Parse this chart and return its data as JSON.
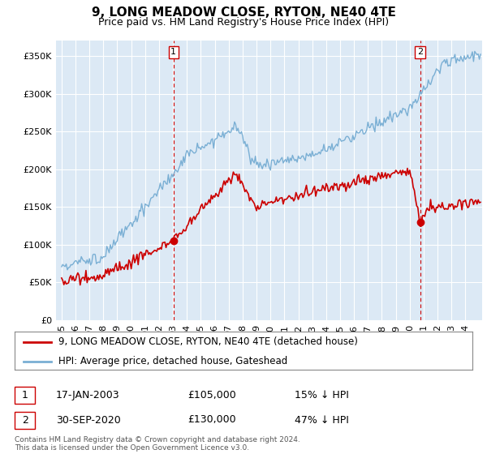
{
  "title": "9, LONG MEADOW CLOSE, RYTON, NE40 4TE",
  "subtitle": "Price paid vs. HM Land Registry's House Price Index (HPI)",
  "ylim": [
    0,
    370000
  ],
  "yticks": [
    0,
    50000,
    100000,
    150000,
    200000,
    250000,
    300000,
    350000
  ],
  "sale1": {
    "date_num": 2003.04,
    "price": 105000,
    "label": "1",
    "date_str": "17-JAN-2003",
    "pct": "15% ↓ HPI"
  },
  "sale2": {
    "date_num": 2020.75,
    "price": 130000,
    "label": "2",
    "date_str": "30-SEP-2020",
    "pct": "47% ↓ HPI"
  },
  "legend1": "9, LONG MEADOW CLOSE, RYTON, NE40 4TE (detached house)",
  "legend2": "HPI: Average price, detached house, Gateshead",
  "footer": "Contains HM Land Registry data © Crown copyright and database right 2024.\nThis data is licensed under the Open Government Licence v3.0.",
  "line_color_red": "#cc0000",
  "line_color_blue": "#7aafd4",
  "dashed_color": "#cc0000",
  "background": "#ffffff",
  "plot_bg": "#dce9f5",
  "grid_color": "#ffffff",
  "title_fontsize": 11,
  "subtitle_fontsize": 9,
  "tick_fontsize": 8,
  "xlim_start": 1994.6,
  "xlim_end": 2025.2
}
